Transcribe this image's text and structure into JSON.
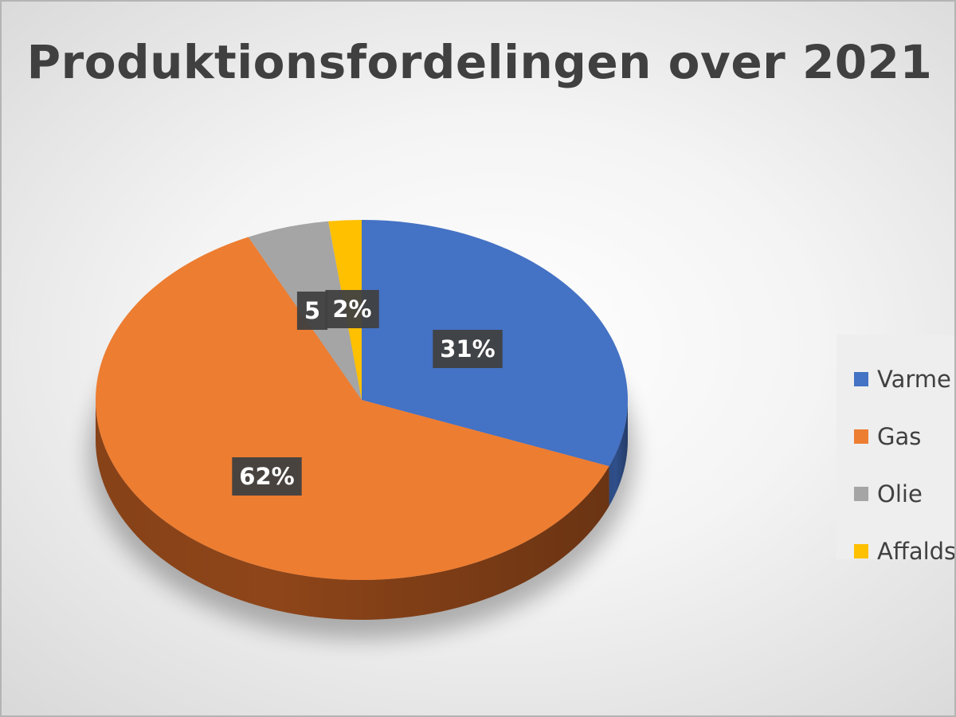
{
  "chart_data": {
    "type": "pie",
    "title": "Produktionsfordelingen over 2021",
    "style": "3d",
    "legend_position": "right",
    "slices": [
      {
        "name": "Varmepumpe",
        "legend_label": "Varme",
        "value": 31,
        "data_label": "31%",
        "color": "#4472C4",
        "side_color": "#2F4F8A"
      },
      {
        "name": "Gas",
        "legend_label": "Gas",
        "value": 62,
        "data_label": "62%",
        "color": "#ED7D31",
        "side_color": "#8E4519"
      },
      {
        "name": "Olie",
        "legend_label": "Olie",
        "value": 5,
        "data_label": "5",
        "color": "#A5A5A5",
        "side_color": "#6B6B6B"
      },
      {
        "name": "Affaldsvarme",
        "legend_label": "Affalds",
        "value": 2,
        "data_label": "2%",
        "color": "#FFC000",
        "side_color": "#B38600"
      }
    ],
    "data_label_box_color": "#404040"
  }
}
